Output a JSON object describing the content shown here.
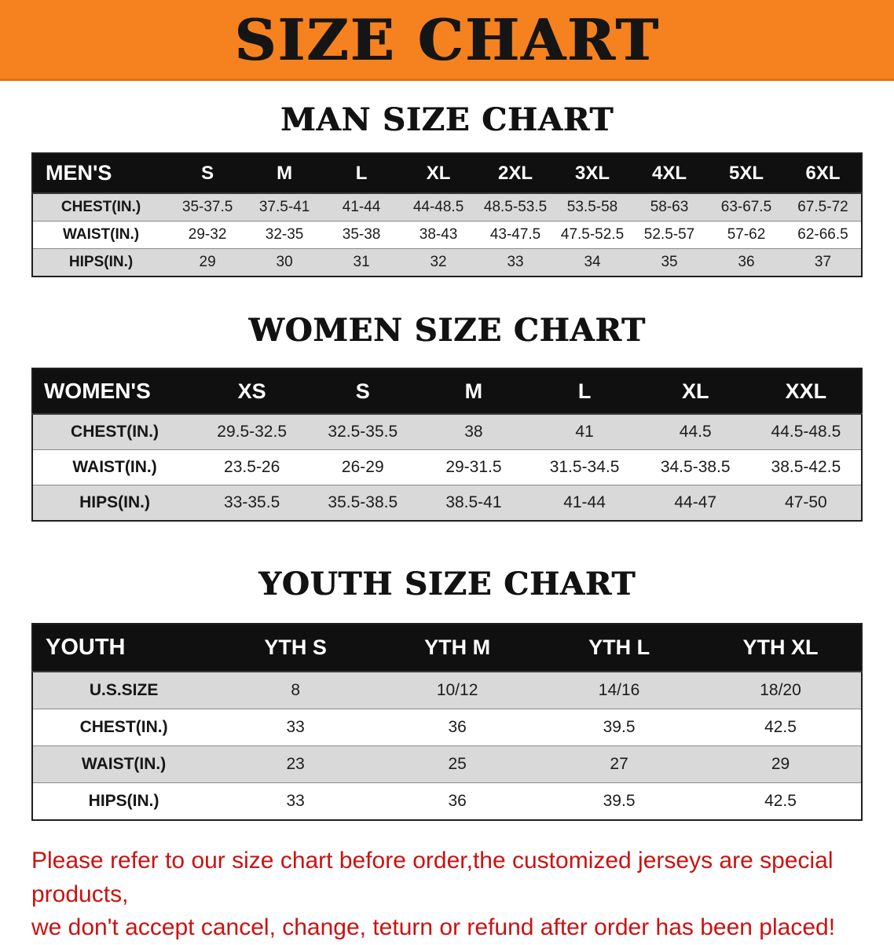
{
  "banner": {
    "title": "SIZE CHART"
  },
  "colors": {
    "banner_bg": "#f5821f",
    "table_header_bg": "#101010",
    "row_alt_bg": "#d9d9d9",
    "note_text": "#cc1111"
  },
  "sections": [
    {
      "heading": "MAN SIZE CHART",
      "table": {
        "header": [
          "MEN'S",
          "S",
          "M",
          "L",
          "XL",
          "2XL",
          "3XL",
          "4XL",
          "5XL",
          "6XL"
        ],
        "rows": [
          [
            "CHEST(IN.)",
            "35-37.5",
            "37.5-41",
            "41-44",
            "44-48.5",
            "48.5-53.5",
            "53.5-58",
            "58-63",
            "63-67.5",
            "67.5-72"
          ],
          [
            "WAIST(IN.)",
            "29-32",
            "32-35",
            "35-38",
            "38-43",
            "43-47.5",
            "47.5-52.5",
            "52.5-57",
            "57-62",
            "62-66.5"
          ],
          [
            "HIPS(IN.)",
            "29",
            "30",
            "31",
            "32",
            "33",
            "34",
            "35",
            "36",
            "37"
          ]
        ]
      }
    },
    {
      "heading": "WOMEN SIZE CHART",
      "table": {
        "header": [
          "WOMEN'S",
          "XS",
          "S",
          "M",
          "L",
          "XL",
          "XXL"
        ],
        "rows": [
          [
            "CHEST(IN.)",
            "29.5-32.5",
            "32.5-35.5",
            "38",
            "41",
            "44.5",
            "44.5-48.5"
          ],
          [
            "WAIST(IN.)",
            "23.5-26",
            "26-29",
            "29-31.5",
            "31.5-34.5",
            "34.5-38.5",
            "38.5-42.5"
          ],
          [
            "HIPS(IN.)",
            "33-35.5",
            "35.5-38.5",
            "38.5-41",
            "41-44",
            "44-47",
            "47-50"
          ]
        ]
      }
    },
    {
      "heading": "YOUTH SIZE CHART",
      "table": {
        "header": [
          "YOUTH",
          "YTH S",
          "YTH M",
          "YTH L",
          "YTH XL"
        ],
        "rows": [
          [
            "U.S.SIZE",
            "8",
            "10/12",
            "14/16",
            "18/20"
          ],
          [
            "CHEST(IN.)",
            "33",
            "36",
            "39.5",
            "42.5"
          ],
          [
            "WAIST(IN.)",
            "23",
            "25",
            "27",
            "29"
          ],
          [
            "HIPS(IN.)",
            "33",
            "36",
            "39.5",
            "42.5"
          ]
        ]
      }
    }
  ],
  "footer_note": {
    "line1": "Please refer to our size chart before order,the customized jerseys are special products,",
    "line2": "we don't accept cancel, change, teturn or refund after order has been placed!"
  }
}
